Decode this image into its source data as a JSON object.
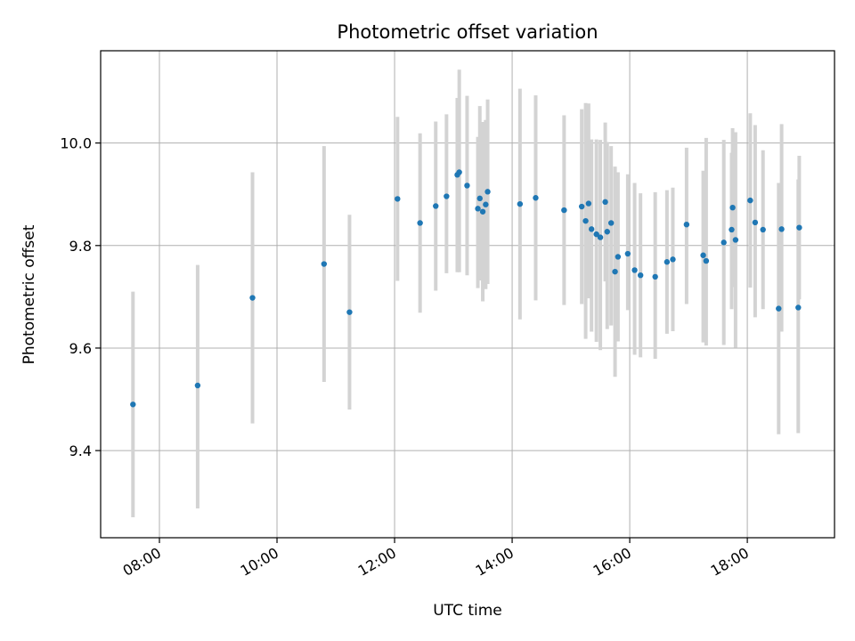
{
  "chart_data": {
    "type": "scatter",
    "title": "Photometric offset variation",
    "xlabel": "UTC time",
    "ylabel": "Photometric offset",
    "x_tick_labels": [
      "08:00",
      "10:00",
      "12:00",
      "14:00",
      "16:00",
      "18:00"
    ],
    "x_tick_values": [
      8,
      10,
      12,
      14,
      16,
      18
    ],
    "y_tick_labels": [
      "9.4",
      "9.6",
      "9.8",
      "10.0"
    ],
    "y_tick_values": [
      9.4,
      9.6,
      9.8,
      10.0
    ],
    "xlim": [
      "07:00",
      "19:29"
    ],
    "ylim": [
      9.23,
      10.18
    ],
    "grid": true,
    "colors": {
      "point": "#1f77b4",
      "errorbar": "#d3d3d3",
      "grid": "#b0b0b0"
    },
    "series": [
      {
        "x": [
          "07:33",
          "08:39",
          "09:35",
          "10:48",
          "11:14",
          "12:03",
          "12:26",
          "12:42",
          "12:53",
          "13:04",
          "13:06",
          "13:14",
          "13:25",
          "13:27",
          "13:30",
          "13:33",
          "13:35",
          "14:08",
          "14:24",
          "14:53",
          "15:11",
          "15:15",
          "15:18",
          "15:21",
          "15:26",
          "15:30",
          "15:35",
          "15:37",
          "15:41",
          "15:45",
          "15:48",
          "15:58",
          "16:05",
          "16:11",
          "16:26",
          "16:38",
          "16:44",
          "16:58",
          "17:15",
          "17:18",
          "17:36",
          "17:44",
          "17:45",
          "17:48",
          "18:03",
          "18:08",
          "18:16",
          "18:32",
          "18:35",
          "18:52",
          "18:53"
        ],
        "y": [
          9.49,
          9.527,
          9.698,
          9.764,
          9.67,
          9.891,
          9.844,
          9.877,
          9.896,
          9.938,
          9.943,
          9.917,
          9.872,
          9.892,
          9.866,
          9.88,
          9.905,
          9.881,
          9.893,
          9.869,
          9.876,
          9.848,
          9.882,
          9.832,
          9.822,
          9.816,
          9.885,
          9.827,
          9.844,
          9.749,
          9.778,
          9.784,
          9.752,
          9.742,
          9.739,
          9.768,
          9.773,
          9.841,
          9.781,
          9.77,
          9.806,
          9.831,
          9.874,
          9.811,
          9.888,
          9.845,
          9.831,
          9.677,
          9.832,
          9.679,
          9.835
        ],
        "yerr_low": [
          0.22,
          0.24,
          0.245,
          0.23,
          0.19,
          0.16,
          0.175,
          0.165,
          0.15,
          0.19,
          0.195,
          0.175,
          0.155,
          0.16,
          0.175,
          0.165,
          0.18,
          0.225,
          0.2,
          0.185,
          0.19,
          0.23,
          0.185,
          0.2,
          0.21,
          0.22,
          0.155,
          0.19,
          0.2,
          0.205,
          0.165,
          0.11,
          0.165,
          0.16,
          0.16,
          0.14,
          0.14,
          0.155,
          0.17,
          0.165,
          0.2,
          0.155,
          0.155,
          0.21,
          0.17,
          0.185,
          0.155,
          0.245,
          0.2,
          0.245,
          0.14
        ],
        "yerr_high": [
          0.22,
          0.235,
          0.245,
          0.23,
          0.19,
          0.16,
          0.175,
          0.165,
          0.16,
          0.15,
          0.2,
          0.175,
          0.14,
          0.18,
          0.175,
          0.165,
          0.18,
          0.225,
          0.2,
          0.185,
          0.19,
          0.23,
          0.195,
          0.175,
          0.185,
          0.19,
          0.155,
          0.175,
          0.15,
          0.205,
          0.165,
          0.155,
          0.17,
          0.16,
          0.165,
          0.14,
          0.14,
          0.15,
          0.165,
          0.24,
          0.2,
          0.15,
          0.155,
          0.21,
          0.17,
          0.19,
          0.155,
          0.245,
          0.205,
          0.25,
          0.14
        ]
      }
    ]
  }
}
